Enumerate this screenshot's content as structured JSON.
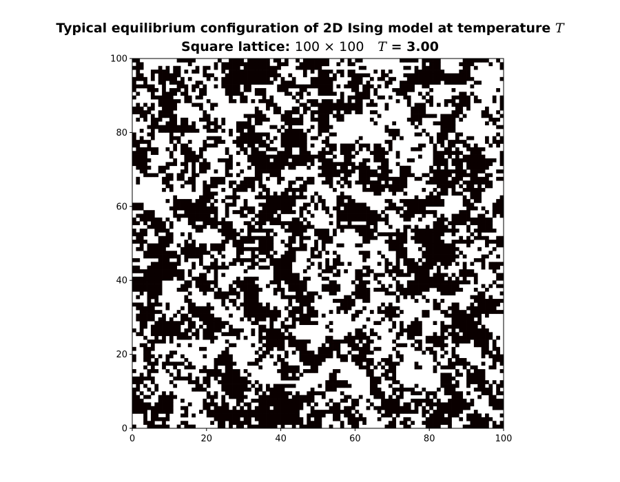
{
  "chart_data": {
    "type": "heatmap",
    "title": "Typical equilibrium configuration of 2D Ising model at temperature T",
    "title_parts": {
      "line1_text": "Typical equilibrium configuration of 2D Ising model at temperature",
      "line1_symbol": "T",
      "line2_label": "Square lattice:",
      "line2_size": "100 × 100",
      "line2_symbol": "T",
      "line2_value": "= 3.00"
    },
    "lattice": {
      "rows": 100,
      "cols": 100
    },
    "temperature": 3.0,
    "spin_values": [
      -1,
      1
    ],
    "colors": {
      "spin_up": "#0a0000",
      "spin_down": "#ffffff",
      "axis": "#000000"
    },
    "xlim": [
      0,
      100
    ],
    "ylim": [
      0,
      100
    ],
    "x_ticks": [
      "0",
      "20",
      "40",
      "60",
      "80",
      "100"
    ],
    "y_ticks": [
      "0",
      "20",
      "40",
      "60",
      "80",
      "100"
    ],
    "xlabel": "",
    "ylabel": "",
    "grid": false,
    "legend": "none",
    "note": "Per-site spin values are a random 100x100 configuration; exact cell values are not legible at this resolution."
  }
}
